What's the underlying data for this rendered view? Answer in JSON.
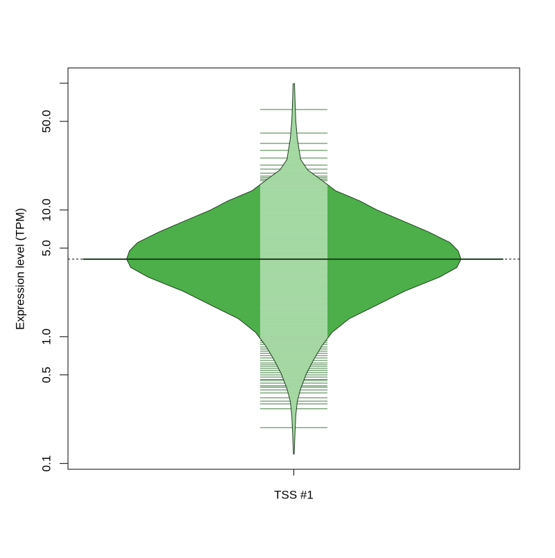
{
  "chart_data": {
    "type": "beanplot",
    "y_label": "Expression level (TPM)",
    "categories": [
      "TSS #1"
    ],
    "log_y": true,
    "ylim": [
      0.09,
      132
    ],
    "yticks": [
      {
        "value": 0.1,
        "label": "0.1"
      },
      {
        "value": 0.5,
        "label": "0.5"
      },
      {
        "value": 1,
        "label": "1.0"
      },
      {
        "value": 5,
        "label": "5.0"
      },
      {
        "value": 10,
        "label": "10.0"
      },
      {
        "value": 50,
        "label": "50.0"
      },
      {
        "value": 100,
        "label": null
      }
    ],
    "bean_color": "#4daf4a",
    "border_color": "#1f3d1f",
    "inner_color": "#b2dfb0",
    "line_color": "#3d7d3d",
    "average": 4.09,
    "density": {
      "y": [
        100,
        68.6,
        50,
        36.5,
        25.0,
        20.7,
        17.2,
        14.2,
        11.8,
        10,
        8.07,
        6.68,
        5.53,
        4.76,
        4.09,
        3.52,
        2.95,
        2.29,
        1.78,
        1.39,
        1.08,
        0.84,
        0.65,
        0.51,
        0.39,
        0.31,
        0.24,
        0.185,
        0.118
      ],
      "width": [
        0.004,
        0.008,
        0.012,
        0.021,
        0.041,
        0.083,
        0.166,
        0.249,
        0.394,
        0.498,
        0.664,
        0.809,
        0.934,
        0.983,
        1,
        0.975,
        0.871,
        0.664,
        0.498,
        0.332,
        0.228,
        0.166,
        0.116,
        0.075,
        0.041,
        0.021,
        0.012,
        0.008,
        0.002
      ]
    },
    "observations": [
      62,
      40.4,
      33.5,
      29.5,
      25.7,
      22.6,
      21,
      19.5,
      18.5,
      18,
      17.5,
      17,
      16,
      15,
      14,
      13,
      12,
      11,
      10,
      9,
      8,
      7,
      6,
      5,
      4.5,
      4,
      3.5,
      3,
      2.5,
      2,
      1.8,
      1.6,
      1.4,
      1.3,
      1.2,
      1.15,
      1.1,
      1.05,
      1.0,
      0.97,
      0.93,
      0.9,
      0.87,
      0.83,
      0.8,
      0.77,
      0.74,
      0.71,
      0.68,
      0.65,
      0.62,
      0.6,
      0.58,
      0.56,
      0.54,
      0.52,
      0.5,
      0.48,
      0.46,
      0.45,
      0.43,
      0.41,
      0.4,
      0.38,
      0.36,
      0.33,
      0.31,
      0.295,
      0.27,
      0.192
    ]
  }
}
